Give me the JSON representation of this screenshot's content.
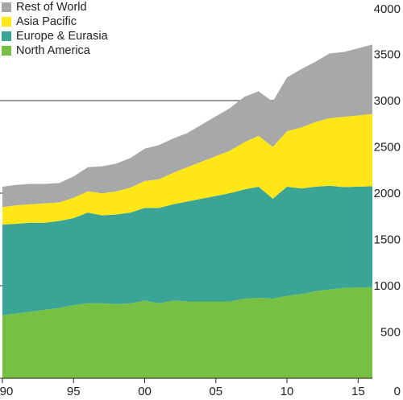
{
  "chart_data": {
    "type": "area",
    "stacked": true,
    "x": [
      1990,
      1991,
      1992,
      1993,
      1994,
      1995,
      1996,
      1997,
      1998,
      1999,
      2000,
      2001,
      2002,
      2003,
      2004,
      2005,
      2006,
      2007,
      2008,
      2009,
      2010,
      2011,
      2012,
      2013,
      2014,
      2015
    ],
    "xticks": [
      {
        "value": 1990,
        "label": "90"
      },
      {
        "value": 1995,
        "label": "95"
      },
      {
        "value": 2000,
        "label": "00"
      },
      {
        "value": 2005,
        "label": "05"
      },
      {
        "value": 2010,
        "label": "10"
      },
      {
        "value": 2015,
        "label": "15"
      }
    ],
    "yticks": [
      0,
      500,
      1000,
      1500,
      2000,
      2500,
      3000,
      3500,
      4000
    ],
    "ylim": [
      0,
      4000
    ],
    "xlim": [
      1990,
      2016
    ],
    "gridlines": [
      1000,
      2000,
      3000
    ],
    "legend_position": "top-left",
    "series": [
      {
        "name": "North America",
        "color": "#76c043",
        "values": [
          680,
          700,
          720,
          740,
          760,
          790,
          810,
          810,
          800,
          810,
          840,
          810,
          840,
          830,
          830,
          830,
          830,
          860,
          870,
          860,
          890,
          910,
          940,
          960,
          975,
          985
        ]
      },
      {
        "name": "Europe & Eurasia",
        "color": "#3aa597",
        "values": [
          980,
          970,
          960,
          940,
          940,
          940,
          980,
          950,
          970,
          980,
          1000,
          1030,
          1040,
          1080,
          1110,
          1140,
          1170,
          1180,
          1200,
          1080,
          1180,
          1140,
          1130,
          1120,
          1090,
          1090
        ]
      },
      {
        "name": "Asia Pacific",
        "color": "#ffe616",
        "values": [
          190,
          200,
          200,
          210,
          200,
          220,
          230,
          240,
          250,
          270,
          290,
          310,
          340,
          370,
          400,
          430,
          460,
          510,
          550,
          560,
          600,
          660,
          700,
          730,
          760,
          780
        ]
      },
      {
        "name": "Rest of World",
        "color": "#a7a8aa",
        "values": [
          220,
          220,
          220,
          210,
          210,
          230,
          260,
          290,
          300,
          320,
          350,
          370,
          370,
          370,
          400,
          430,
          460,
          490,
          480,
          490,
          580,
          630,
          650,
          700,
          700,
          750
        ]
      }
    ]
  }
}
